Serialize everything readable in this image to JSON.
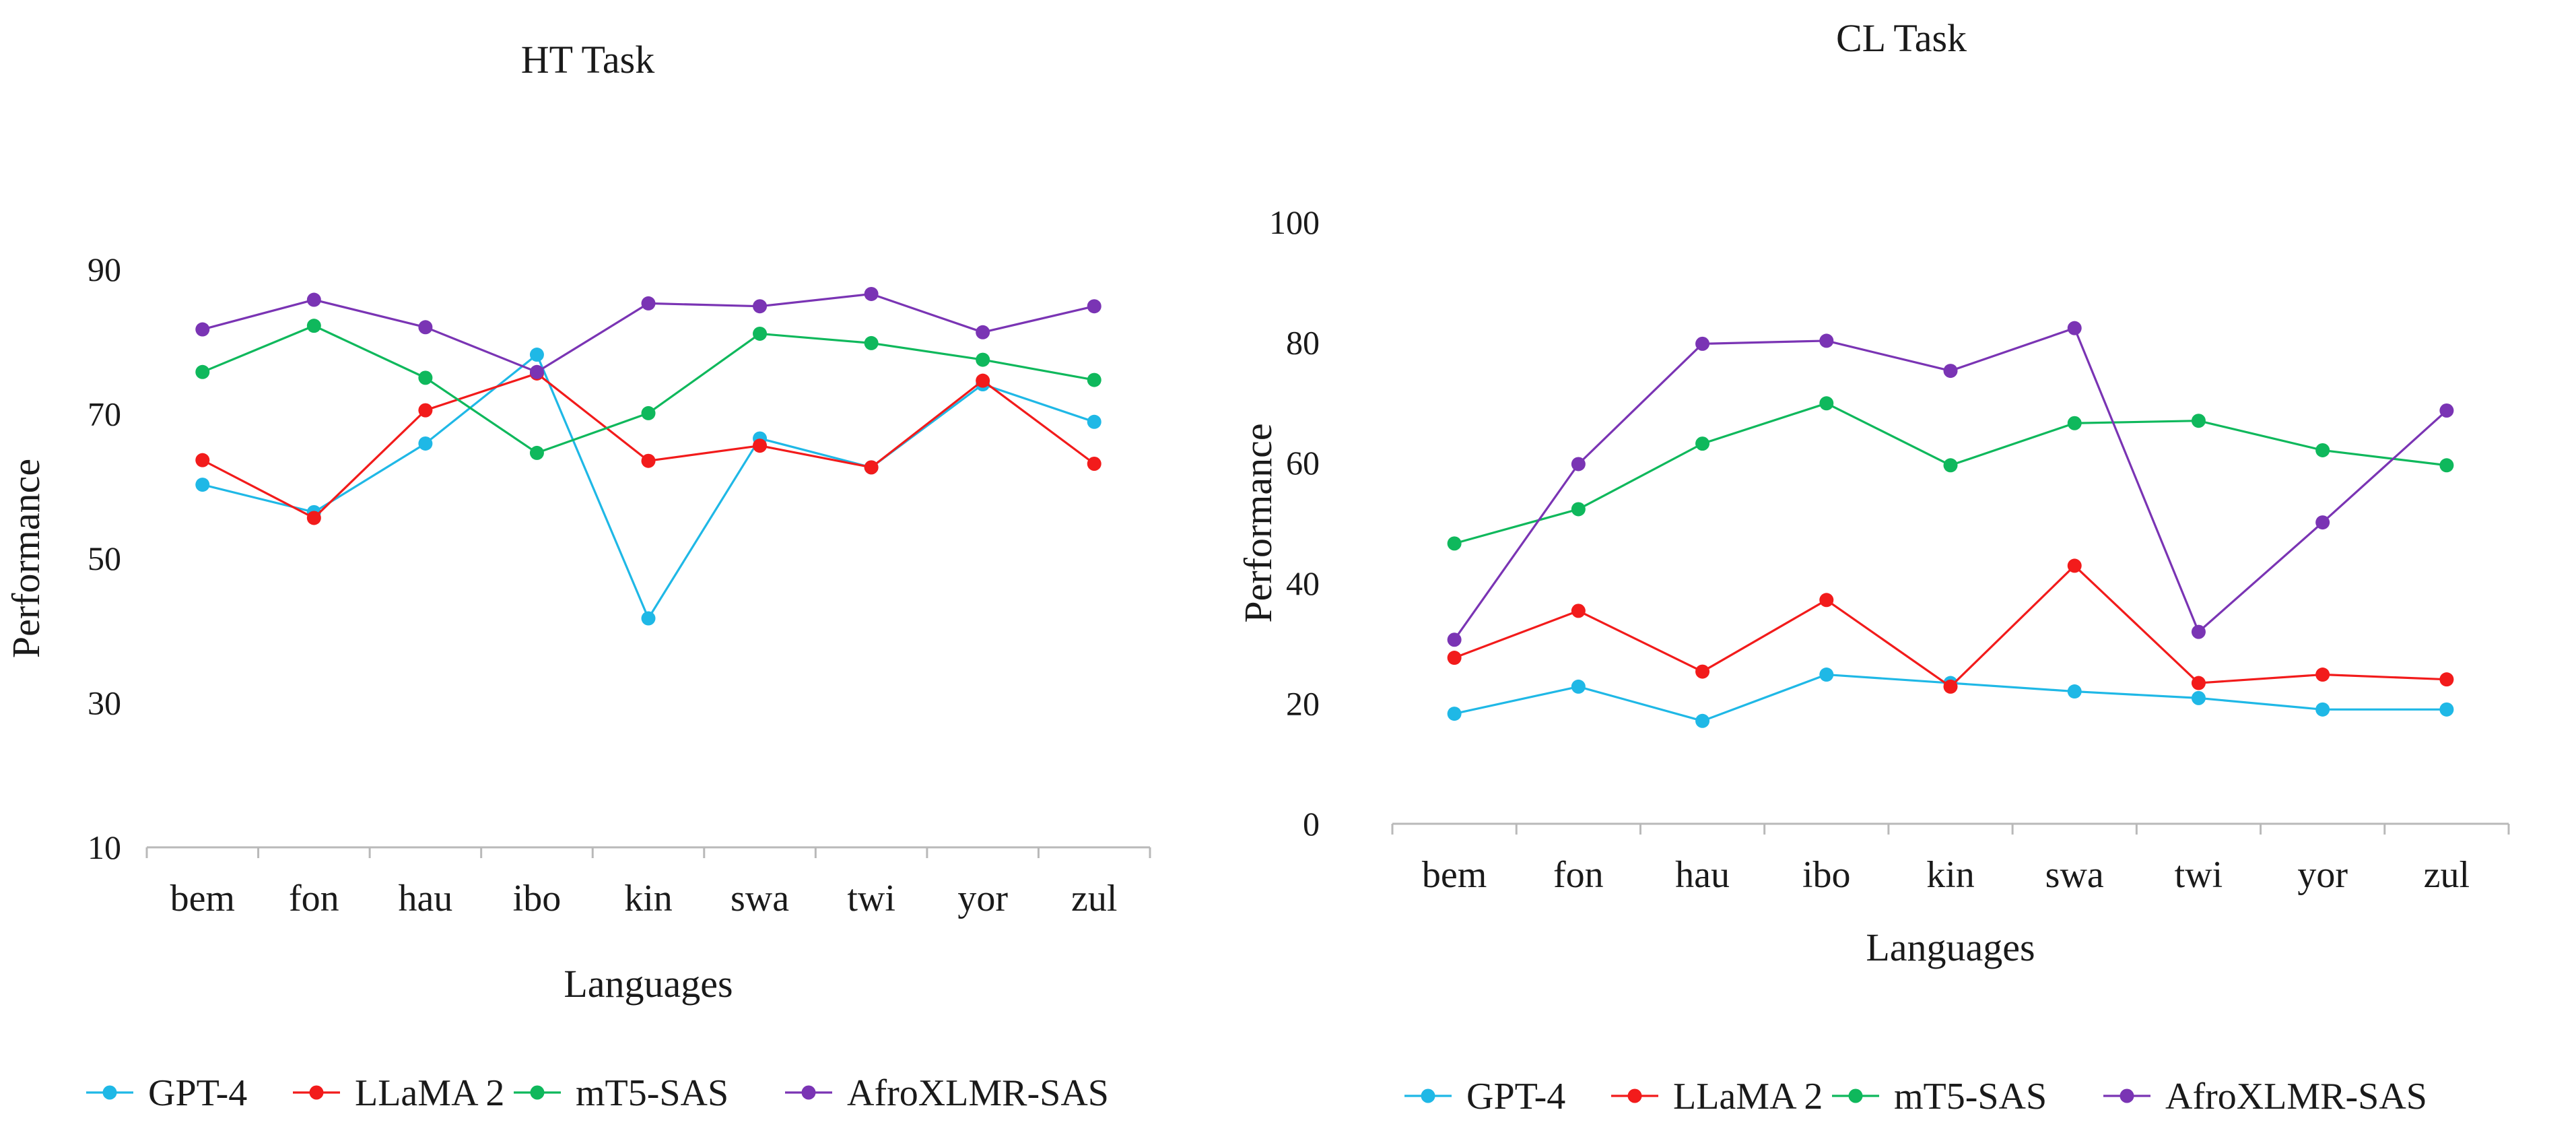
{
  "colors": {
    "GPT-4": "#1fb8e6",
    "LLaMA 2": "#f21b1b",
    "mT5-SAS": "#0fb85c",
    "AfroXLMR-SAS": "#7a34b4",
    "axis": "#b9b9b9",
    "text": "#1a1a1a"
  },
  "chart_data": [
    {
      "type": "line",
      "title": "HT Task",
      "xlabel": "Languages",
      "ylabel": "Performance",
      "categories": [
        "bem",
        "fon",
        "hau",
        "ibo",
        "kin",
        "swa",
        "twi",
        "yor",
        "zul"
      ],
      "yticks": [
        10,
        30,
        50,
        70,
        90
      ],
      "ylim": [
        10,
        90
      ],
      "grid": false,
      "legend_position": "bottom",
      "series": [
        {
          "name": "GPT-4",
          "values": [
            60.2,
            56.4,
            65.9,
            78.2,
            41.7,
            66.6,
            62.6,
            74.1,
            68.9
          ]
        },
        {
          "name": "LLaMA 2",
          "values": [
            63.6,
            55.6,
            70.5,
            75.6,
            63.5,
            65.6,
            62.6,
            74.6,
            63.1
          ]
        },
        {
          "name": "mT5-SAS",
          "values": [
            75.8,
            82.2,
            75.0,
            64.6,
            70.1,
            81.1,
            79.8,
            77.5,
            74.7
          ]
        },
        {
          "name": "AfroXLMR-SAS",
          "values": [
            81.7,
            85.8,
            82.0,
            75.8,
            85.3,
            84.9,
            86.6,
            81.3,
            84.9
          ]
        }
      ]
    },
    {
      "type": "line",
      "title": "CL Task",
      "xlabel": "Languages",
      "ylabel": "Performance",
      "categories": [
        "bem",
        "fon",
        "hau",
        "ibo",
        "kin",
        "swa",
        "twi",
        "yor",
        "zul"
      ],
      "yticks": [
        0,
        20,
        40,
        60,
        80,
        100
      ],
      "ylim": [
        0,
        100
      ],
      "grid": false,
      "legend_position": "bottom",
      "series": [
        {
          "name": "GPT-4",
          "values": [
            18.3,
            22.8,
            17.1,
            24.8,
            23.4,
            22.0,
            20.9,
            19.0,
            19.0
          ]
        },
        {
          "name": "LLaMA 2",
          "values": [
            27.6,
            35.4,
            25.3,
            37.2,
            22.8,
            42.9,
            23.4,
            24.8,
            24.0
          ]
        },
        {
          "name": "mT5-SAS",
          "values": [
            46.6,
            52.3,
            63.2,
            69.9,
            59.6,
            66.6,
            67.0,
            62.1,
            59.6
          ]
        },
        {
          "name": "AfroXLMR-SAS",
          "values": [
            30.6,
            59.8,
            79.8,
            80.3,
            75.3,
            82.4,
            31.9,
            50.1,
            68.7
          ]
        }
      ]
    }
  ]
}
